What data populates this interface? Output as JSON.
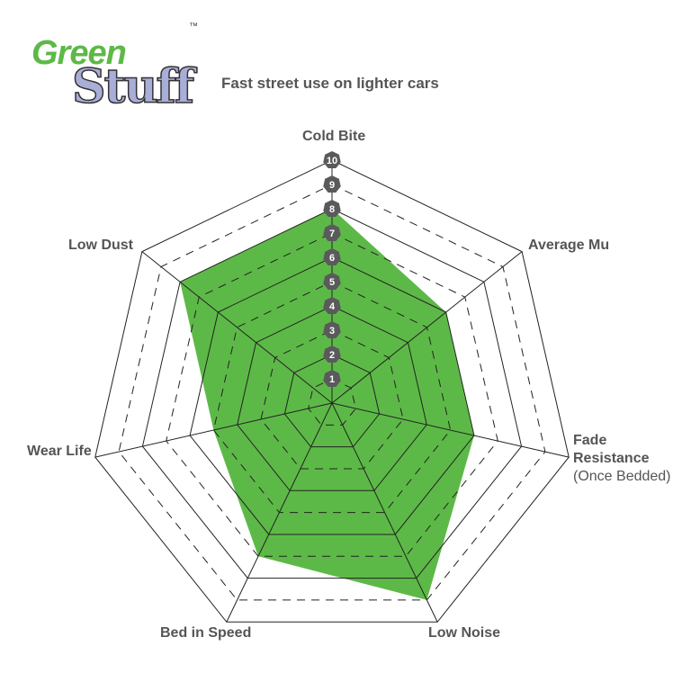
{
  "logo": {
    "line1": "Green",
    "line2": "Stuff",
    "trademark": "™"
  },
  "subtitle": "Fast street use on lighter cars",
  "chart_data": {
    "type": "radar",
    "title": "Fast street use on lighter cars",
    "axes": [
      "Cold Bite",
      "Average Mu",
      "Fade Resistance",
      "Low Noise",
      "Bed in Speed",
      "Wear Life",
      "Low Dust"
    ],
    "axis_sublabels": {
      "Fade Resistance": "(Once Bedded)"
    },
    "values": [
      8,
      6,
      6,
      9,
      7,
      5,
      8
    ],
    "range": [
      0,
      10
    ],
    "tick_labels": [
      "1",
      "2",
      "3",
      "4",
      "5",
      "6",
      "7",
      "8",
      "9",
      "10"
    ],
    "fill_color": "#5db947",
    "badge_color": "#5a5a5c"
  }
}
